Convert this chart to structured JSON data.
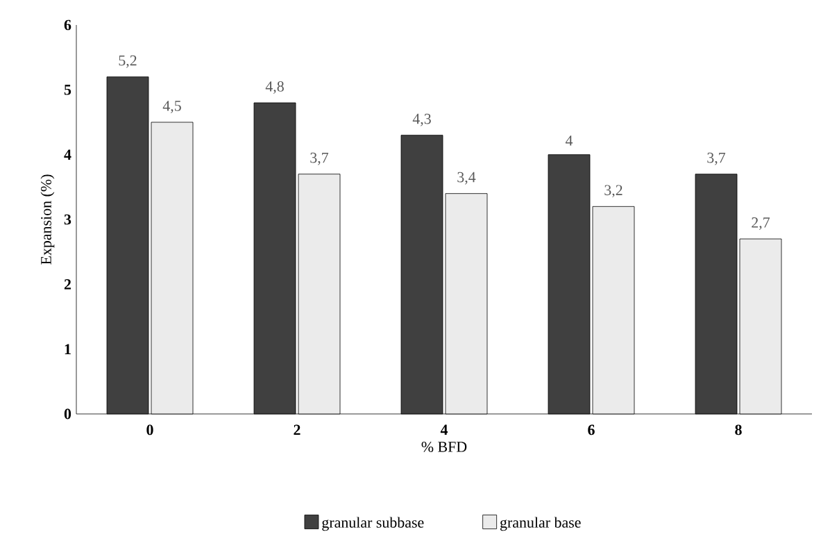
{
  "chart_data": {
    "type": "bar",
    "xlabel": "% BFD",
    "ylabel": "Expansion (%)",
    "categories": [
      "0",
      "2",
      "4",
      "6",
      "8"
    ],
    "series": [
      {
        "name": "granular subbase",
        "color": "#000000",
        "values": [
          5.2,
          4.8,
          4.3,
          4.0,
          3.7
        ],
        "value_labels": [
          "5,2",
          "4,8",
          "4,3",
          "4",
          "3,7"
        ]
      },
      {
        "name": "granular base",
        "color": "#000000",
        "values": [
          4.5,
          3.7,
          3.4,
          3.2,
          2.7
        ],
        "value_labels": [
          "4,5",
          "3,7",
          "3,4",
          "3,2",
          "2,7"
        ]
      }
    ],
    "ylim": [
      0,
      6
    ],
    "yticks": [
      0,
      1,
      2,
      3,
      4,
      5,
      6
    ],
    "legend": "bottom"
  }
}
